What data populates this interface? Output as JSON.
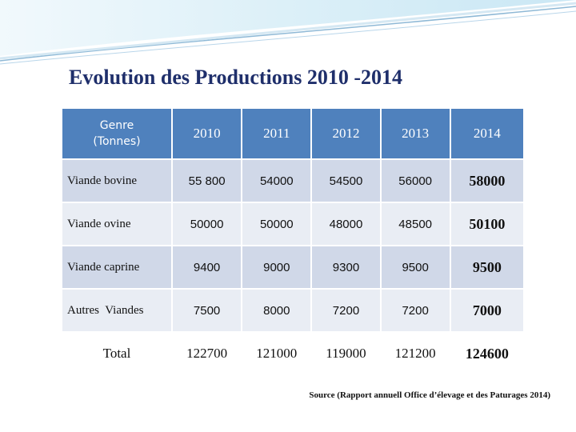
{
  "title": "Evolution des Productions 2010 -2014",
  "colors": {
    "header": "#4f81bd",
    "row_odd": "#d0d8e8",
    "row_even": "#e9edf4",
    "title": "#1f2f6b"
  },
  "table": {
    "header": {
      "genre_line1": "Genre",
      "genre_line2": "(Tonnes)",
      "years": [
        "2010",
        "2011",
        "2012",
        "2013",
        "2014"
      ]
    },
    "rows": [
      {
        "label": "Viande bovine",
        "values": [
          "55 800",
          "54000",
          "54500",
          "56000",
          "58000"
        ]
      },
      {
        "label": "Viande ovine",
        "values": [
          "50000",
          "50000",
          "48000",
          "48500",
          "50100"
        ]
      },
      {
        "label": "Viande caprine",
        "values": [
          "9400",
          "9000",
          "9300",
          "9500",
          "9500"
        ]
      },
      {
        "label": "Autres  Viandes",
        "values": [
          "7500",
          "8000",
          "7200",
          "7200",
          "7000"
        ]
      }
    ],
    "total": {
      "label": "Total",
      "values": [
        "122700",
        "121000",
        "119000",
        "121200",
        "124600"
      ]
    }
  },
  "source": "Source (Rapport annuell Office d’élevage et des Paturages 2014)"
}
